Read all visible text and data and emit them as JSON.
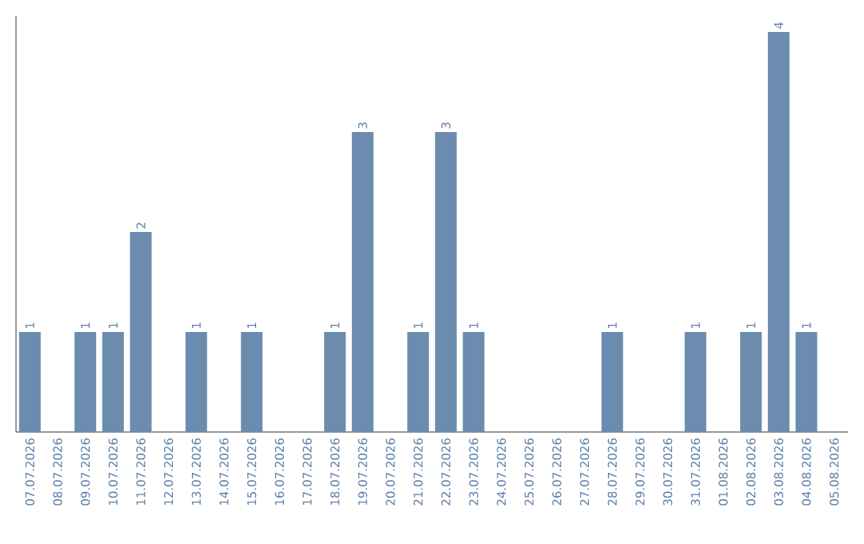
{
  "chart_data": {
    "type": "bar",
    "categories": [
      "07.07.2026",
      "08.07.2026",
      "09.07.2026",
      "10.07.2026",
      "11.07.2026",
      "12.07.2026",
      "13.07.2026",
      "14.07.2026",
      "15.07.2026",
      "16.07.2026",
      "17.07.2026",
      "18.07.2026",
      "19.07.2026",
      "20.07.2026",
      "21.07.2026",
      "22.07.2026",
      "23.07.2026",
      "24.07.2026",
      "25.07.2026",
      "26.07.2026",
      "27.07.2026",
      "28.07.2026",
      "29.07.2026",
      "30.07.2026",
      "31.07.2026",
      "01.08.2026",
      "02.08.2026",
      "03.08.2026",
      "04.08.2026",
      "05.08.2026"
    ],
    "values": [
      1,
      0,
      1,
      1,
      2,
      0,
      1,
      0,
      1,
      0,
      0,
      1,
      3,
      0,
      1,
      3,
      1,
      0,
      0,
      0,
      0,
      1,
      0,
      0,
      1,
      0,
      1,
      4,
      1,
      0
    ],
    "value_labels": [
      "1",
      null,
      "1",
      "1",
      "2",
      null,
      "1",
      null,
      "1",
      null,
      null,
      "1",
      "3",
      null,
      "1",
      "3",
      "1",
      null,
      null,
      null,
      null,
      "1",
      null,
      null,
      "1",
      null,
      "1",
      "4",
      "1",
      null
    ],
    "color": "#6b8cae",
    "ylim": [
      0,
      4.16
    ]
  }
}
